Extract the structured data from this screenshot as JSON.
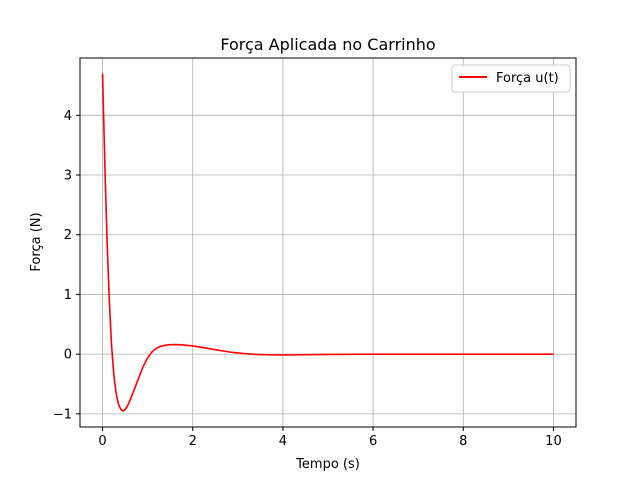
{
  "chart_data": {
    "type": "line",
    "title": "Força Aplicada no Carrinho",
    "xlabel": "Tempo (s)",
    "ylabel": "Força (N)",
    "xlim": [
      -0.5,
      10.5
    ],
    "ylim": [
      -1.22,
      4.96
    ],
    "x_ticks": [
      0,
      2,
      4,
      6,
      8,
      10
    ],
    "y_ticks": [
      -1,
      0,
      1,
      2,
      3,
      4
    ],
    "x_tick_labels": [
      "0",
      "2",
      "4",
      "6",
      "8",
      "10"
    ],
    "y_tick_labels": [
      "−1",
      "0",
      "1",
      "2",
      "3",
      "4"
    ],
    "grid": true,
    "legend_position": "top-right",
    "series": [
      {
        "name": "Força u(t)",
        "color": "#ff0000",
        "x": [
          0,
          0.05,
          0.1,
          0.15,
          0.2,
          0.25,
          0.3,
          0.35,
          0.4,
          0.45,
          0.5,
          0.55,
          0.6,
          0.7,
          0.8,
          0.9,
          1.0,
          1.1,
          1.2,
          1.3,
          1.4,
          1.5,
          1.6,
          1.7,
          1.8,
          1.9,
          2.0,
          2.2,
          2.4,
          2.6,
          2.8,
          3.0,
          3.2,
          3.4,
          3.6,
          3.8,
          4.0,
          4.2,
          4.5,
          5.0,
          5.5,
          6.0,
          7.0,
          8.0,
          9.0,
          10.0
        ],
        "y": [
          4.7,
          3.2,
          1.9,
          0.9,
          0.15,
          -0.35,
          -0.65,
          -0.83,
          -0.92,
          -0.95,
          -0.93,
          -0.87,
          -0.79,
          -0.6,
          -0.4,
          -0.21,
          -0.06,
          0.04,
          0.1,
          0.135,
          0.15,
          0.158,
          0.16,
          0.158,
          0.153,
          0.146,
          0.138,
          0.115,
          0.088,
          0.062,
          0.038,
          0.02,
          0.005,
          -0.004,
          -0.009,
          -0.012,
          -0.013,
          -0.012,
          -0.009,
          -0.004,
          -0.002,
          0.0,
          0.0,
          0.0,
          0.0,
          0.0
        ]
      }
    ]
  }
}
